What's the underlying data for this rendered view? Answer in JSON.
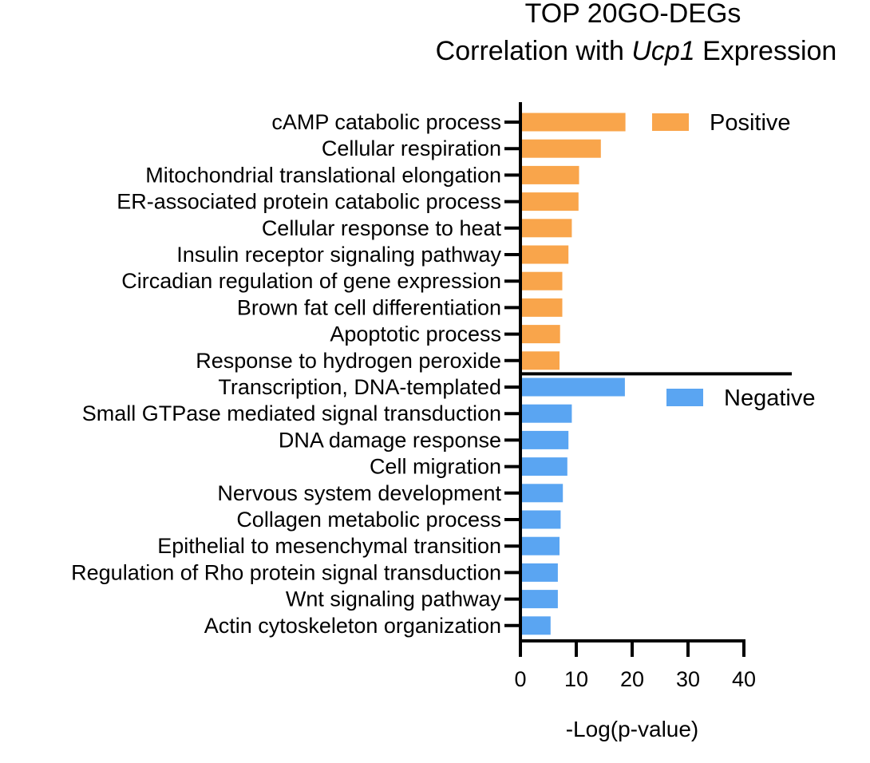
{
  "chart_data": {
    "type": "bar",
    "orientation": "horizontal",
    "title_line1": "TOP 20GO-DEGs",
    "title_line2_prefix": "Correlation with ",
    "title_line2_italic": "Ucp1",
    "title_line2_suffix": " Expression",
    "xlabel": "-Log(p-value)",
    "xlim": [
      0,
      40
    ],
    "xticks": [
      0,
      10,
      20,
      30,
      40
    ],
    "legend_position": "right",
    "series": [
      {
        "name": "Positive",
        "color": "#F9A54B",
        "categories": [
          "cAMP catabolic process",
          "Cellular respiration",
          "Mitochondrial translational elongation",
          "ER-associated protein catabolic process",
          "Cellular response to heat",
          "Insulin receptor signaling pathway",
          "Circadian regulation of gene expression",
          "Brown fat cell differentiation",
          "Apoptotic process",
          "Response to hydrogen peroxide"
        ],
        "values": [
          18.8,
          14.4,
          10.5,
          10.4,
          9.2,
          8.6,
          7.5,
          7.5,
          7.1,
          7.0
        ]
      },
      {
        "name": "Negative",
        "color": "#5AA5F2",
        "categories": [
          "Transcription, DNA-templated",
          "Small GTPase mediated signal transduction",
          "DNA damage response",
          "Cell migration",
          "Nervous system development",
          "Collagen metabolic process",
          "Epithelial to mesenchymal transition",
          "Regulation of Rho protein signal transduction",
          "Wnt signaling pathway",
          "Actin cytoskeleton organization"
        ],
        "values": [
          18.7,
          9.2,
          8.6,
          8.4,
          7.6,
          7.2,
          7.0,
          6.7,
          6.7,
          5.4
        ]
      }
    ]
  }
}
